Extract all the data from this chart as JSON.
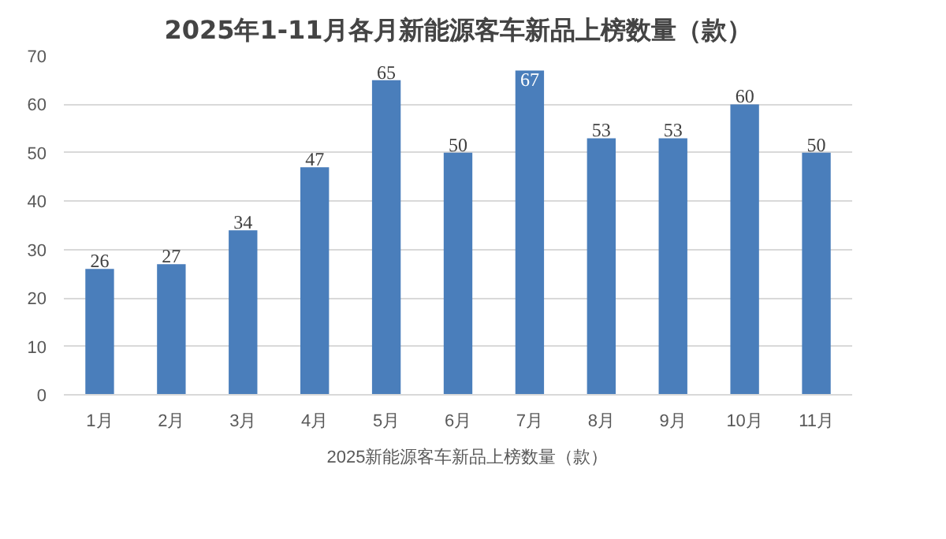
{
  "chart_data": {
    "type": "bar",
    "title": "2025年1-11月各月新能源客车新品上榜数量（款）",
    "categories": [
      "1月",
      "2月",
      "3月",
      "4月",
      "5月",
      "6月",
      "7月",
      "8月",
      "9月",
      "10月",
      "11月"
    ],
    "series": [
      {
        "name": "2025新能源客车新品上榜数量（款）",
        "color": "#4a7ebb",
        "values": [
          26,
          27,
          34,
          47,
          65,
          50,
          67,
          53,
          53,
          60,
          50
        ]
      }
    ],
    "ylim": [
      0,
      70
    ],
    "yticks": [
      0,
      10,
      20,
      30,
      40,
      50,
      60,
      70
    ],
    "grid": "y",
    "legend": "bottom",
    "data_labels": true
  }
}
